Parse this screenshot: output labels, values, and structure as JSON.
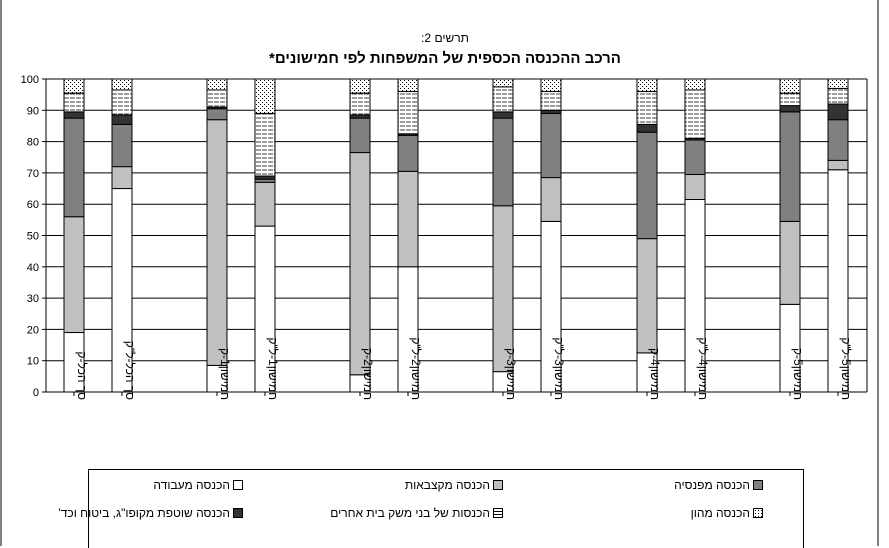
{
  "chart_data": {
    "type": "bar",
    "stacked": true,
    "subtitle": "תרשים 2:",
    "title": "הרכב ההכנסה הכספית של המשפחות לפי חמישונים*",
    "ylim": [
      0,
      100
    ],
    "yticks": [
      0,
      10,
      20,
      30,
      40,
      50,
      60,
      70,
      80,
      90,
      100
    ],
    "grid": true,
    "legend_position": "bottom",
    "categories": [
      "סך הכל-ק",
      "סך הכל-ל\"ק",
      "חמישון1-ק",
      "חמישון1-ל\"ק",
      "חמישון2-ק",
      "חמישון2-ל\"ק",
      "חמישון3-ק",
      "חמישון3-ל\"ק",
      "חמישון4-ק",
      "חמישון4-ל\"ק",
      "חמישון5-ק",
      "חמישון5-ל\"ק"
    ],
    "series": [
      {
        "name": "הכנסה מעבודה",
        "color": "#ffffff",
        "pattern": "solid",
        "values": [
          19,
          65,
          8.5,
          53,
          5.5,
          40,
          6.5,
          54.5,
          12.5,
          61.5,
          28,
          71
        ]
      },
      {
        "name": "הכנסה מקצבאות",
        "color": "#c0c0c0",
        "pattern": "solid",
        "values": [
          37,
          7,
          78.5,
          14,
          71,
          30.5,
          53,
          14,
          36.5,
          8,
          26.5,
          3
        ]
      },
      {
        "name": "הכנסה מפנסיה",
        "color": "#808080",
        "pattern": "solid",
        "values": [
          31.5,
          13.5,
          3.5,
          1,
          11,
          11.5,
          28,
          20.5,
          34,
          11,
          35,
          13
        ]
      },
      {
        "name": "הכנסה שוטפת מקופו\"ג, ביטוח וכד'",
        "color": "#333333",
        "pattern": "solid",
        "values": [
          2,
          3,
          0.5,
          1,
          1,
          0.5,
          2,
          1,
          2.5,
          0.5,
          2,
          5
        ]
      },
      {
        "name": "הכנסות של בני משק בית אחרים",
        "color": "#ffffff",
        "pattern": "hlines",
        "values": [
          6,
          8,
          5.5,
          20,
          7,
          13.5,
          8,
          6,
          10.5,
          15.5,
          4,
          5
        ]
      },
      {
        "name": "הכנסה מהון",
        "color": "#ffffff",
        "pattern": "dots",
        "values": [
          4.5,
          3.5,
          3.5,
          11,
          4.5,
          4,
          2.5,
          4,
          4,
          3.5,
          4.5,
          3
        ]
      }
    ]
  }
}
